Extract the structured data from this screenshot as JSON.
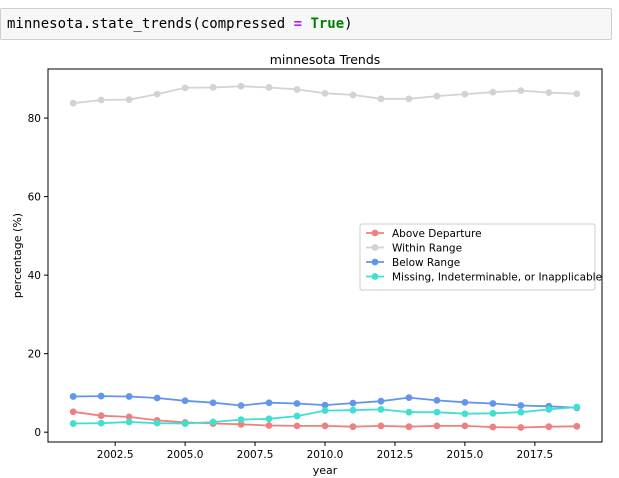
{
  "code_cell": {
    "prefix": "minnesota.state_trends(compressed ",
    "operator": "=",
    "space": " ",
    "keyword": "True",
    "suffix": ")"
  },
  "chart_data": {
    "type": "line",
    "title": "minnesota Trends",
    "xlabel": "year",
    "ylabel": "percentage (%)",
    "xlim": [
      2000.1,
      2019.9
    ],
    "ylim": [
      -2.5,
      92.5
    ],
    "xticks": [
      2002.5,
      2005.0,
      2007.5,
      2010.0,
      2012.5,
      2015.0,
      2017.5
    ],
    "xtick_labels": [
      "2002.5",
      "2005.0",
      "2007.5",
      "2010.0",
      "2012.5",
      "2015.0",
      "2017.5"
    ],
    "yticks": [
      0,
      20,
      40,
      60,
      80
    ],
    "ytick_labels": [
      "0",
      "20",
      "40",
      "60",
      "80"
    ],
    "grid": false,
    "legend_placement": "center-right",
    "x": [
      2001,
      2002,
      2003,
      2004,
      2005,
      2006,
      2007,
      2008,
      2009,
      2010,
      2011,
      2012,
      2013,
      2014,
      2015,
      2016,
      2017,
      2018,
      2019
    ],
    "series": [
      {
        "name": "Above Departure",
        "color": "#f08080",
        "values": [
          5.2,
          4.2,
          3.9,
          3.0,
          2.5,
          2.2,
          2.0,
          1.7,
          1.6,
          1.6,
          1.4,
          1.6,
          1.4,
          1.6,
          1.6,
          1.3,
          1.2,
          1.4,
          1.5
        ]
      },
      {
        "name": "Within Range",
        "color": "#d3d3d3",
        "values": [
          83.8,
          84.6,
          84.7,
          86.1,
          87.7,
          87.8,
          88.1,
          87.8,
          87.3,
          86.3,
          85.9,
          84.9,
          84.9,
          85.6,
          86.1,
          86.6,
          87.0,
          86.5,
          86.2
        ]
      },
      {
        "name": "Below Range",
        "color": "#6495ed",
        "values": [
          9.1,
          9.2,
          9.1,
          8.7,
          8.0,
          7.5,
          6.8,
          7.5,
          7.3,
          6.9,
          7.4,
          7.9,
          8.8,
          8.1,
          7.6,
          7.3,
          6.8,
          6.6,
          6.2
        ]
      },
      {
        "name": "Missing, Indeterminable, or Inapplicable",
        "color": "#40e0d0",
        "values": [
          2.2,
          2.3,
          2.6,
          2.3,
          2.2,
          2.6,
          3.2,
          3.4,
          4.1,
          5.5,
          5.6,
          5.8,
          5.1,
          5.1,
          4.7,
          4.8,
          5.1,
          5.8,
          6.4
        ]
      }
    ]
  }
}
